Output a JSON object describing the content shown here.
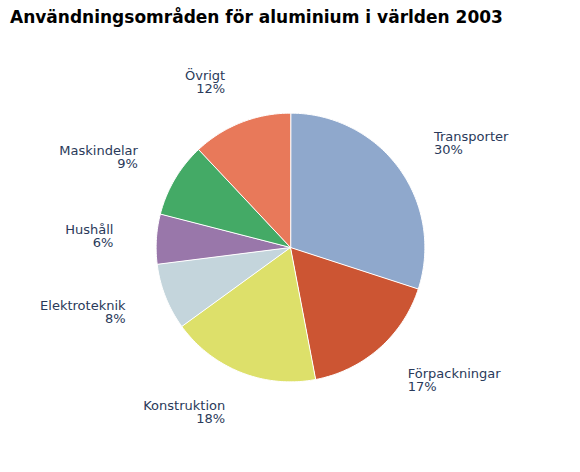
{
  "chart_data": {
    "type": "pie",
    "title": "Användningsområden för aluminium i världen 2003",
    "categories": [
      "Transporter",
      "Förpackningar",
      "Konstruktion",
      "Elektroteknik",
      "Hushåll",
      "Maskindelar",
      "Övrigt"
    ],
    "values": [
      30,
      17,
      18,
      8,
      6,
      9,
      12
    ],
    "value_labels": [
      "30%",
      "17%",
      "18%",
      "8%",
      "6%",
      "9%",
      "12%"
    ],
    "colors": [
      "#8fa8cc",
      "#cc5533",
      "#dde06a",
      "#c4d5dc",
      "#9977aa",
      "#44aa66",
      "#e8795a"
    ]
  }
}
